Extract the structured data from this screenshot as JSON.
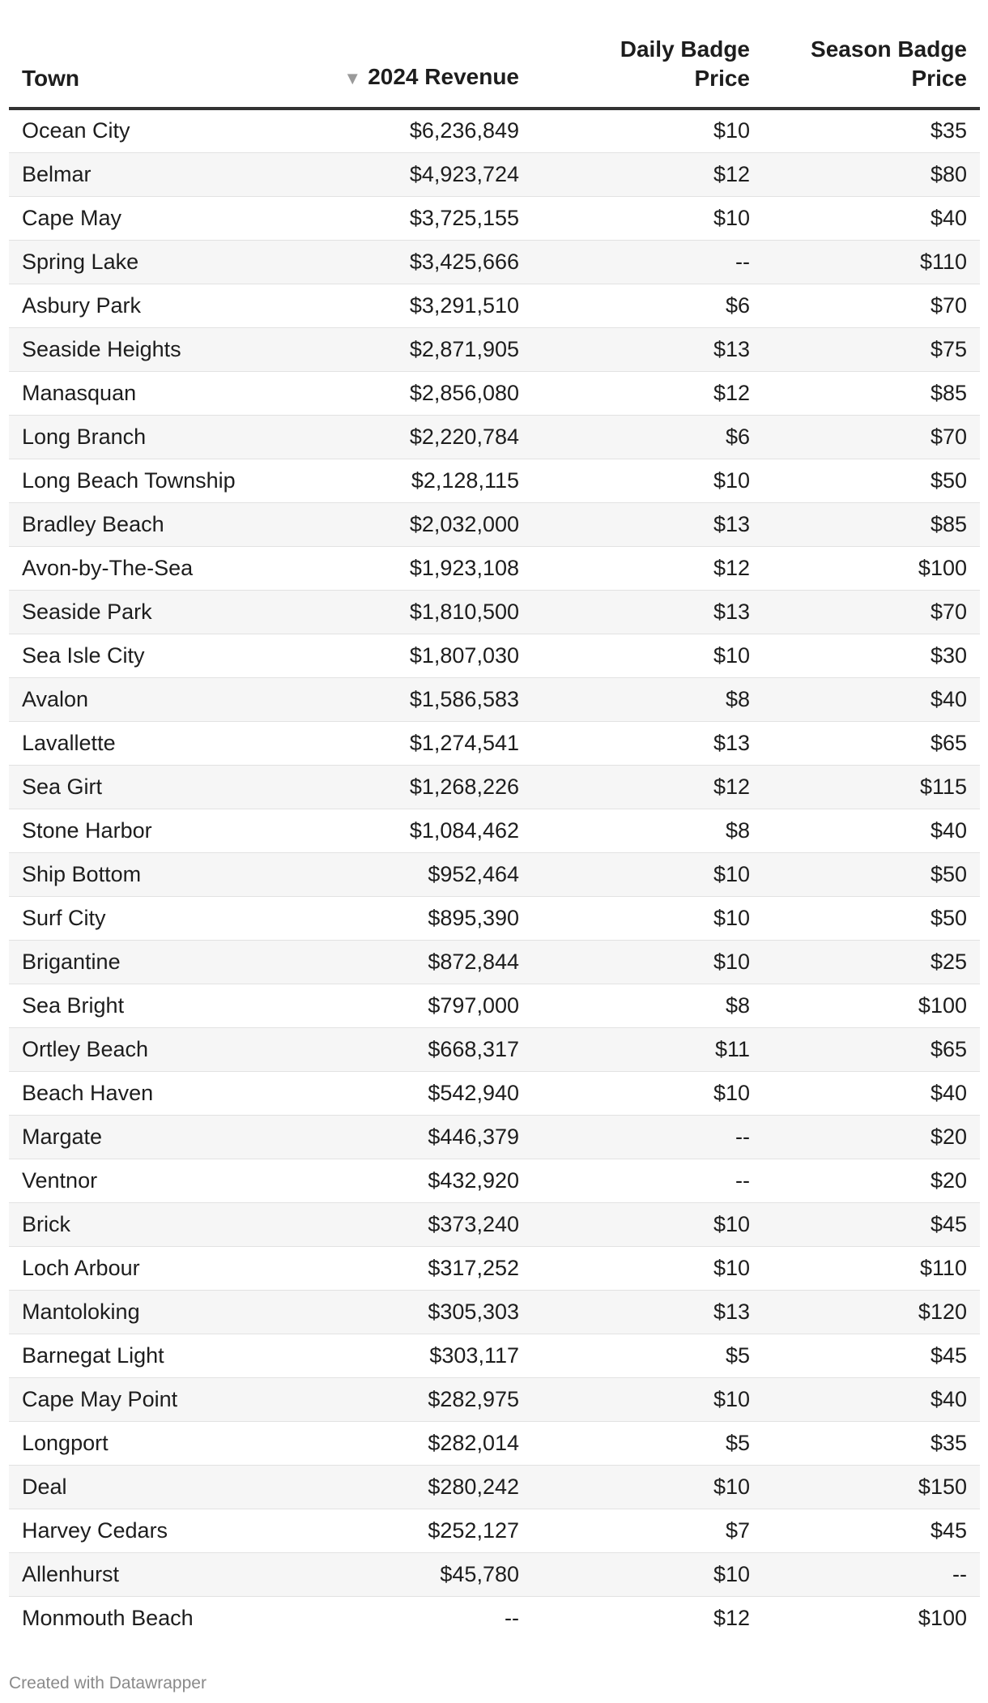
{
  "columns": {
    "town": "Town",
    "revenue": "2024 Revenue",
    "revenue_sort_icon": "▼",
    "daily_line1": "Daily Badge",
    "daily_line2": "Price",
    "season_line1": "Season Badge",
    "season_line2": "Price"
  },
  "rows": [
    {
      "town": "Ocean City",
      "revenue": "$6,236,849",
      "daily": "$10",
      "season": "$35"
    },
    {
      "town": "Belmar",
      "revenue": "$4,923,724",
      "daily": "$12",
      "season": "$80"
    },
    {
      "town": "Cape May",
      "revenue": "$3,725,155",
      "daily": "$10",
      "season": "$40"
    },
    {
      "town": "Spring Lake",
      "revenue": "$3,425,666",
      "daily": "--",
      "season": "$110"
    },
    {
      "town": "Asbury Park",
      "revenue": "$3,291,510",
      "daily": "$6",
      "season": "$70"
    },
    {
      "town": "Seaside Heights",
      "revenue": "$2,871,905",
      "daily": "$13",
      "season": "$75"
    },
    {
      "town": "Manasquan",
      "revenue": "$2,856,080",
      "daily": "$12",
      "season": "$85"
    },
    {
      "town": "Long Branch",
      "revenue": "$2,220,784",
      "daily": "$6",
      "season": "$70"
    },
    {
      "town": "Long Beach Township",
      "revenue": "$2,128,115",
      "daily": "$10",
      "season": "$50"
    },
    {
      "town": "Bradley Beach",
      "revenue": "$2,032,000",
      "daily": "$13",
      "season": "$85"
    },
    {
      "town": "Avon-by-The-Sea",
      "revenue": "$1,923,108",
      "daily": "$12",
      "season": "$100"
    },
    {
      "town": "Seaside Park",
      "revenue": "$1,810,500",
      "daily": "$13",
      "season": "$70"
    },
    {
      "town": "Sea Isle City",
      "revenue": "$1,807,030",
      "daily": "$10",
      "season": "$30"
    },
    {
      "town": "Avalon",
      "revenue": "$1,586,583",
      "daily": "$8",
      "season": "$40"
    },
    {
      "town": "Lavallette",
      "revenue": "$1,274,541",
      "daily": "$13",
      "season": "$65"
    },
    {
      "town": "Sea Girt",
      "revenue": "$1,268,226",
      "daily": "$12",
      "season": "$115"
    },
    {
      "town": "Stone Harbor",
      "revenue": "$1,084,462",
      "daily": "$8",
      "season": "$40"
    },
    {
      "town": "Ship Bottom",
      "revenue": "$952,464",
      "daily": "$10",
      "season": "$50"
    },
    {
      "town": "Surf City",
      "revenue": "$895,390",
      "daily": "$10",
      "season": "$50"
    },
    {
      "town": "Brigantine",
      "revenue": "$872,844",
      "daily": "$10",
      "season": "$25"
    },
    {
      "town": "Sea Bright",
      "revenue": "$797,000",
      "daily": "$8",
      "season": "$100"
    },
    {
      "town": "Ortley Beach",
      "revenue": "$668,317",
      "daily": "$11",
      "season": "$65"
    },
    {
      "town": "Beach Haven",
      "revenue": "$542,940",
      "daily": "$10",
      "season": "$40"
    },
    {
      "town": "Margate",
      "revenue": "$446,379",
      "daily": "--",
      "season": "$20"
    },
    {
      "town": "Ventnor",
      "revenue": "$432,920",
      "daily": "--",
      "season": "$20"
    },
    {
      "town": "Brick",
      "revenue": "$373,240",
      "daily": "$10",
      "season": "$45"
    },
    {
      "town": "Loch Arbour",
      "revenue": "$317,252",
      "daily": "$10",
      "season": "$110"
    },
    {
      "town": "Mantoloking",
      "revenue": "$305,303",
      "daily": "$13",
      "season": "$120"
    },
    {
      "town": "Barnegat Light",
      "revenue": "$303,117",
      "daily": "$5",
      "season": "$45"
    },
    {
      "town": "Cape May Point",
      "revenue": "$282,975",
      "daily": "$10",
      "season": "$40"
    },
    {
      "town": "Longport",
      "revenue": "$282,014",
      "daily": "$5",
      "season": "$35"
    },
    {
      "town": "Deal",
      "revenue": "$280,242",
      "daily": "$10",
      "season": "$150"
    },
    {
      "town": "Harvey Cedars",
      "revenue": "$252,127",
      "daily": "$7",
      "season": "$45"
    },
    {
      "town": "Allenhurst",
      "revenue": "$45,780",
      "daily": "$10",
      "season": "--"
    },
    {
      "town": "Monmouth Beach",
      "revenue": "--",
      "daily": "$12",
      "season": "$100"
    }
  ],
  "footer": "Created with Datawrapper"
}
